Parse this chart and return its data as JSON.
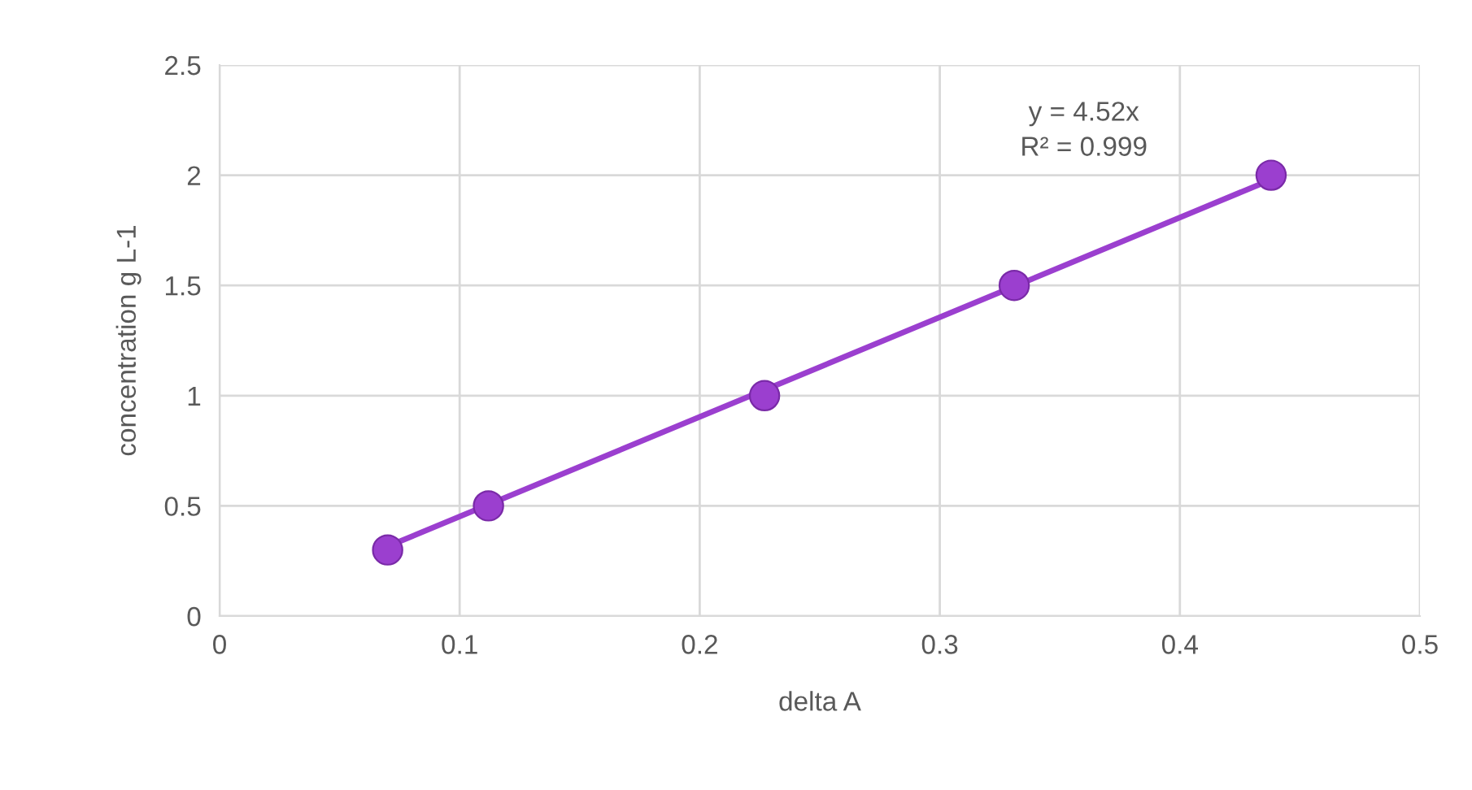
{
  "chart_data": {
    "type": "scatter",
    "xlabel": "delta A",
    "ylabel": "concentration g L-1",
    "series": [
      {
        "color": "#9b3fcf",
        "x": [
          0.07,
          0.112,
          0.227,
          0.331,
          0.438
        ],
        "values": [
          0.3,
          0.5,
          1,
          1.5,
          2
        ],
        "marker": "circle"
      },
      {
        "type": "line",
        "color": "#9b3fcf",
        "x": [
          0.07,
          0.438
        ],
        "values": [
          0.316,
          1.98
        ],
        "marker": "none",
        "line_style": "solid"
      }
    ],
    "annotations": [
      "y = 4.52x\nR² = 0.999"
    ],
    "xlim": [
      0,
      0.5
    ],
    "xticks": [
      0,
      0.1,
      0.2,
      0.3,
      0.4,
      0.5
    ],
    "ylim": [
      0,
      2.5
    ],
    "yticks": [
      0,
      0.5,
      1,
      1.5,
      2,
      2.5
    ],
    "grid": true
  }
}
